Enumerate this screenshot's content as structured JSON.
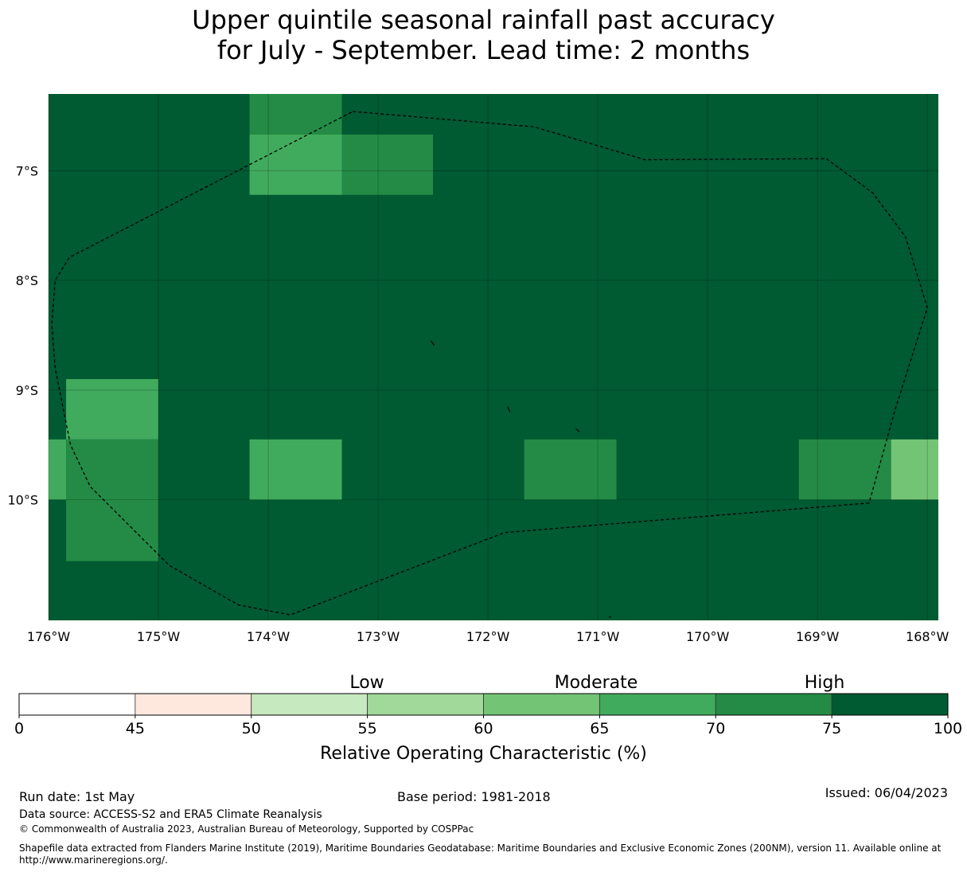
{
  "title": {
    "line1": "Upper quintile seasonal rainfall past accuracy",
    "line2": "for July - September. Lead time: 2 months"
  },
  "map": {
    "lat_labels": [
      "7°S",
      "8°S",
      "9°S",
      "10°S"
    ],
    "lon_labels": [
      "176°W",
      "175°W",
      "174°W",
      "173°W",
      "172°W",
      "171°W",
      "170°W",
      "169°W",
      "168°W"
    ],
    "extent": {
      "lon_min": -176,
      "lon_max": -167.9,
      "lat_min": -11.1,
      "lat_max": -6.3
    },
    "base_color": "#005a32",
    "cells": [
      {
        "lon": [
          -174.17,
          -173.33
        ],
        "lat": [
          -6.67,
          -6.3
        ],
        "color": "#238b45"
      },
      {
        "lon": [
          -174.17,
          -173.33
        ],
        "lat": [
          -7.22,
          -6.67
        ],
        "color": "#41ab5d"
      },
      {
        "lon": [
          -173.33,
          -172.5
        ],
        "lat": [
          -7.22,
          -6.67
        ],
        "color": "#238b45"
      },
      {
        "lon": [
          -175.84,
          -175.0
        ],
        "lat": [
          -9.45,
          -8.9
        ],
        "color": "#41ab5d"
      },
      {
        "lon": [
          -176.0,
          -175.84
        ],
        "lat": [
          -10.0,
          -9.45
        ],
        "color": "#41ab5d"
      },
      {
        "lon": [
          -175.84,
          -175.0
        ],
        "lat": [
          -10.56,
          -9.45
        ],
        "color": "#238b45"
      },
      {
        "lon": [
          -174.17,
          -173.33
        ],
        "lat": [
          -10.0,
          -9.45
        ],
        "color": "#41ab5d"
      },
      {
        "lon": [
          -171.67,
          -170.83
        ],
        "lat": [
          -10.0,
          -9.45
        ],
        "color": "#238b45"
      },
      {
        "lon": [
          -169.17,
          -168.33
        ],
        "lat": [
          -10.0,
          -9.45
        ],
        "color": "#238b45"
      },
      {
        "lon": [
          -168.33,
          -167.9
        ],
        "lat": [
          -10.0,
          -9.45
        ],
        "color": "#74c476"
      }
    ],
    "boundary": [
      [
        -173.23,
        -6.46
      ],
      [
        -171.58,
        -6.6
      ],
      [
        -170.57,
        -6.9
      ],
      [
        -168.92,
        -6.89
      ],
      [
        -168.5,
        -7.2
      ],
      [
        -168.2,
        -7.6
      ],
      [
        -168.0,
        -8.25
      ],
      [
        -168.3,
        -9.2
      ],
      [
        -168.53,
        -10.03
      ],
      [
        -171.85,
        -10.3
      ],
      [
        -173.8,
        -11.05
      ],
      [
        -174.27,
        -10.96
      ],
      [
        -174.9,
        -10.6
      ],
      [
        -175.62,
        -9.88
      ],
      [
        -175.8,
        -9.5
      ],
      [
        -175.94,
        -8.8
      ],
      [
        -175.97,
        -8.4
      ],
      [
        -175.94,
        -8.0
      ],
      [
        -175.81,
        -7.79
      ],
      [
        -173.23,
        -6.46
      ]
    ],
    "islands": [
      [
        [
          -172.52,
          -8.55
        ],
        [
          -172.49,
          -8.59
        ]
      ],
      [
        [
          -171.82,
          -9.15
        ],
        [
          -171.8,
          -9.2
        ]
      ],
      [
        [
          -171.2,
          -9.35
        ],
        [
          -171.17,
          -9.38
        ]
      ],
      [
        [
          -170.9,
          -11.07
        ],
        [
          -170.88,
          -11.07
        ]
      ]
    ]
  },
  "colorbar": {
    "categories": [
      "Low",
      "Moderate",
      "High"
    ],
    "ticks": [
      0,
      45,
      50,
      55,
      60,
      65,
      70,
      75,
      100
    ],
    "colors": [
      "#ffffff",
      "#fee8de",
      "#c7e9c0",
      "#a1d99b",
      "#74c476",
      "#41ab5d",
      "#238b45",
      "#005a32"
    ],
    "label": "Relative Operating Characteristic (%)"
  },
  "footer": {
    "run_date": "Run date: 1st May",
    "base_period": "Base period: 1981-2018",
    "issued": "Issued: 06/04/2023",
    "data_source": "Data source: ACCESS-S2 and ERA5 Climate Reanalysis",
    "copyright": "© Commonwealth of Australia 2023, Australian Bureau of Meteorology, Supported by COSPPac",
    "shapefile_line1": "Shapefile data extracted from Flanders Marine Institute (2019), Maritime Boundaries Geodatabase: Maritime Boundaries and Exclusive Economic Zones (200NM), version 11. Available online at",
    "shapefile_line2": "http://www.marineregions.org/."
  }
}
